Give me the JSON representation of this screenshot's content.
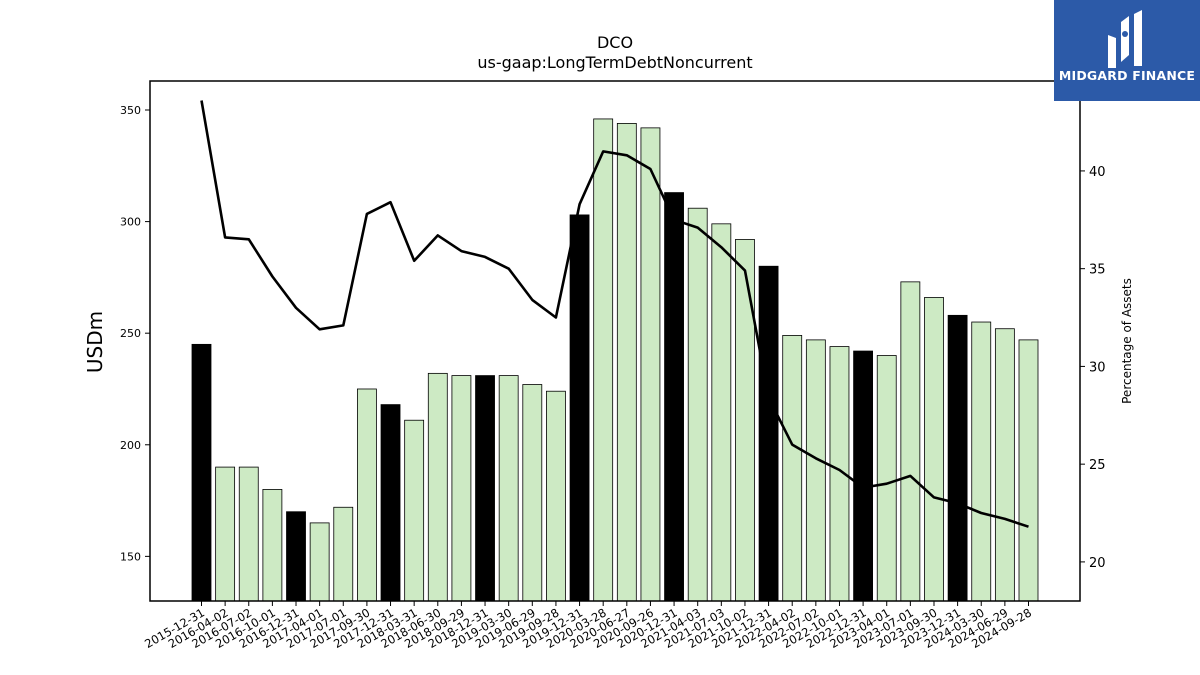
{
  "brand": {
    "name": "MIDGARD FINANCE",
    "colors": {
      "logo_bg": "#2c5aa8",
      "bar_annual": "#000000",
      "bar_quarter": "#cdeac4",
      "line": "#000000"
    }
  },
  "chart_data": {
    "type": "bar",
    "title": "DCO",
    "subtitle": "us-gaap:LongTermDebtNoncurrent",
    "ylabel": "USDm",
    "y2label": "Percentage of Assets",
    "ylim": [
      130,
      363
    ],
    "y2lim": [
      18,
      44.6
    ],
    "yticks": [
      150,
      200,
      250,
      300,
      350
    ],
    "y2ticks": [
      20,
      25,
      30,
      35,
      40
    ],
    "categories": [
      "2015-12-31",
      "2016-04-02",
      "2016-07-02",
      "2016-10-01",
      "2016-12-31",
      "2017-04-01",
      "2017-07-01",
      "2017-09-30",
      "2017-12-31",
      "2018-03-31",
      "2018-06-30",
      "2018-09-29",
      "2018-12-31",
      "2019-03-30",
      "2019-06-29",
      "2019-09-28",
      "2019-12-31",
      "2020-03-28",
      "2020-06-27",
      "2020-09-26",
      "2020-12-31",
      "2021-04-03",
      "2021-07-03",
      "2021-10-02",
      "2021-12-31",
      "2022-04-02",
      "2022-07-02",
      "2022-10-01",
      "2022-12-31",
      "2023-04-01",
      "2023-07-01",
      "2023-09-30",
      "2023-12-31",
      "2024-03-30",
      "2024-06-29",
      "2024-09-28"
    ],
    "series": [
      {
        "type": "bar",
        "values": [
          245,
          190,
          190,
          180,
          170,
          165,
          172,
          225,
          218,
          211,
          232,
          231,
          231,
          231,
          227,
          224,
          303,
          346,
          344,
          342,
          313,
          306,
          299,
          292,
          280,
          249,
          247,
          244,
          242,
          240,
          273,
          266,
          258,
          255,
          252,
          247
        ],
        "annual": [
          true,
          false,
          false,
          false,
          true,
          false,
          false,
          false,
          true,
          false,
          false,
          false,
          true,
          false,
          false,
          false,
          true,
          false,
          false,
          false,
          true,
          false,
          false,
          false,
          true,
          false,
          false,
          false,
          true,
          false,
          false,
          false,
          true,
          false,
          false,
          false
        ]
      },
      {
        "type": "line",
        "axis": "right",
        "values": [
          43.6,
          36.6,
          36.5,
          34.6,
          33.0,
          31.9,
          32.1,
          37.8,
          38.4,
          35.4,
          36.7,
          35.9,
          35.6,
          35.0,
          33.4,
          32.5,
          38.3,
          41.0,
          40.8,
          40.1,
          37.5,
          37.1,
          36.1,
          34.9,
          28.4,
          26.0,
          25.3,
          24.7,
          23.8,
          24.0,
          24.4,
          23.3,
          23.0,
          22.5,
          22.2,
          21.8
        ]
      }
    ],
    "legend": "none",
    "grid": false
  }
}
